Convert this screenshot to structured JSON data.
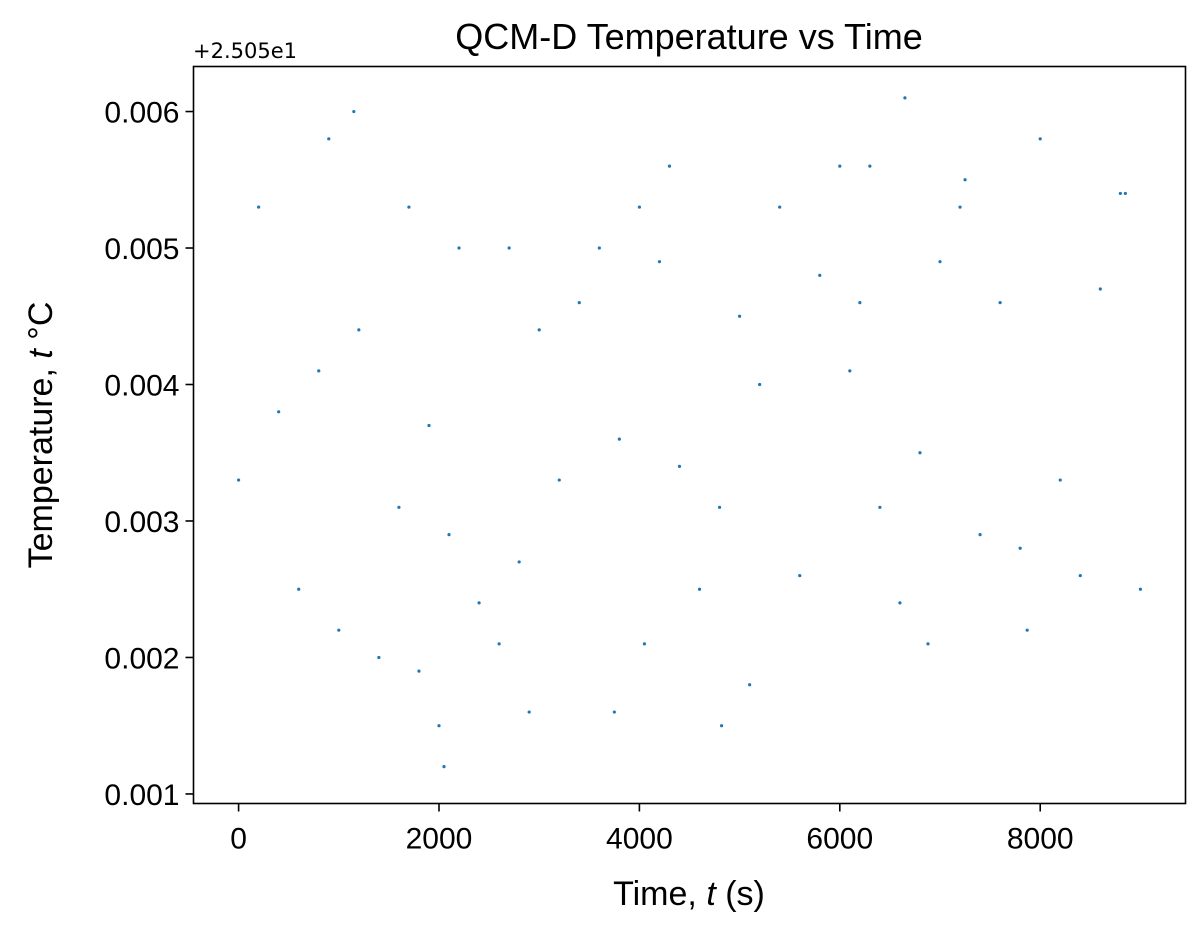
{
  "chart_data": {
    "type": "scatter",
    "title": "QCM-D Temperature vs Time",
    "xlabel_pre": "Time, ",
    "xlabel_var": "t",
    "xlabel_post": " (s)",
    "ylabel_pre": "Temperature, ",
    "ylabel_var": "t",
    "ylabel_post": " °C",
    "y_offset_label": "+2.505e1",
    "y_offset_value": 25.05,
    "xlim": [
      -450,
      9450
    ],
    "ylim": [
      0.00093,
      0.00633
    ],
    "x_ticks": [
      0,
      2000,
      4000,
      6000,
      8000
    ],
    "x_tick_labels": [
      "0",
      "2000",
      "4000",
      "6000",
      "8000"
    ],
    "y_ticks": [
      0.001,
      0.002,
      0.003,
      0.004,
      0.005,
      0.006
    ],
    "y_tick_labels": [
      "0.001",
      "0.002",
      "0.003",
      "0.004",
      "0.005",
      "0.006"
    ],
    "grid": false,
    "marker_color": "#1f77b4",
    "x_range": [
      0,
      9000
    ],
    "y_resolution": 0.0001,
    "series": [
      {
        "x": [
          0,
          200,
          400,
          600,
          800,
          900,
          1000,
          1150,
          1200,
          1400,
          1600,
          1700,
          1800,
          1900,
          2000,
          2050,
          2100,
          2200,
          2400,
          2600,
          2700,
          2800,
          2900,
          3000,
          3200,
          3400,
          3600,
          3750,
          3800,
          4000,
          4050,
          4200,
          4300,
          4400,
          4600,
          4800,
          4820,
          5000,
          5100,
          5200,
          5400,
          5600,
          5800,
          6000,
          6100,
          6200,
          6300,
          6400,
          6600,
          6650,
          6800,
          6880,
          7000,
          7200,
          7250,
          7400,
          7600,
          7800,
          7870,
          8000,
          8200,
          8400,
          8600,
          8800,
          8850,
          9000
        ],
        "y": [
          0.0033,
          0.0053,
          0.0038,
          0.0025,
          0.0041,
          0.0058,
          0.0022,
          0.006,
          0.0044,
          0.002,
          0.0031,
          0.0053,
          0.0019,
          0.0037,
          0.0015,
          0.0012,
          0.0029,
          0.005,
          0.0024,
          0.0021,
          0.005,
          0.0027,
          0.0016,
          0.0044,
          0.0033,
          0.0046,
          0.005,
          0.0016,
          0.0036,
          0.0053,
          0.0021,
          0.0049,
          0.0056,
          0.0034,
          0.0025,
          0.0031,
          0.0015,
          0.0045,
          0.0018,
          0.004,
          0.0053,
          0.0026,
          0.0048,
          0.0056,
          0.0041,
          0.0046,
          0.0056,
          0.0031,
          0.0024,
          0.0061,
          0.0035,
          0.0021,
          0.0049,
          0.0053,
          0.0055,
          0.0029,
          0.0046,
          0.0028,
          0.0022,
          0.0058,
          0.0033,
          0.0026,
          0.0047,
          0.0054,
          0.0054,
          0.0025
        ]
      }
    ]
  }
}
